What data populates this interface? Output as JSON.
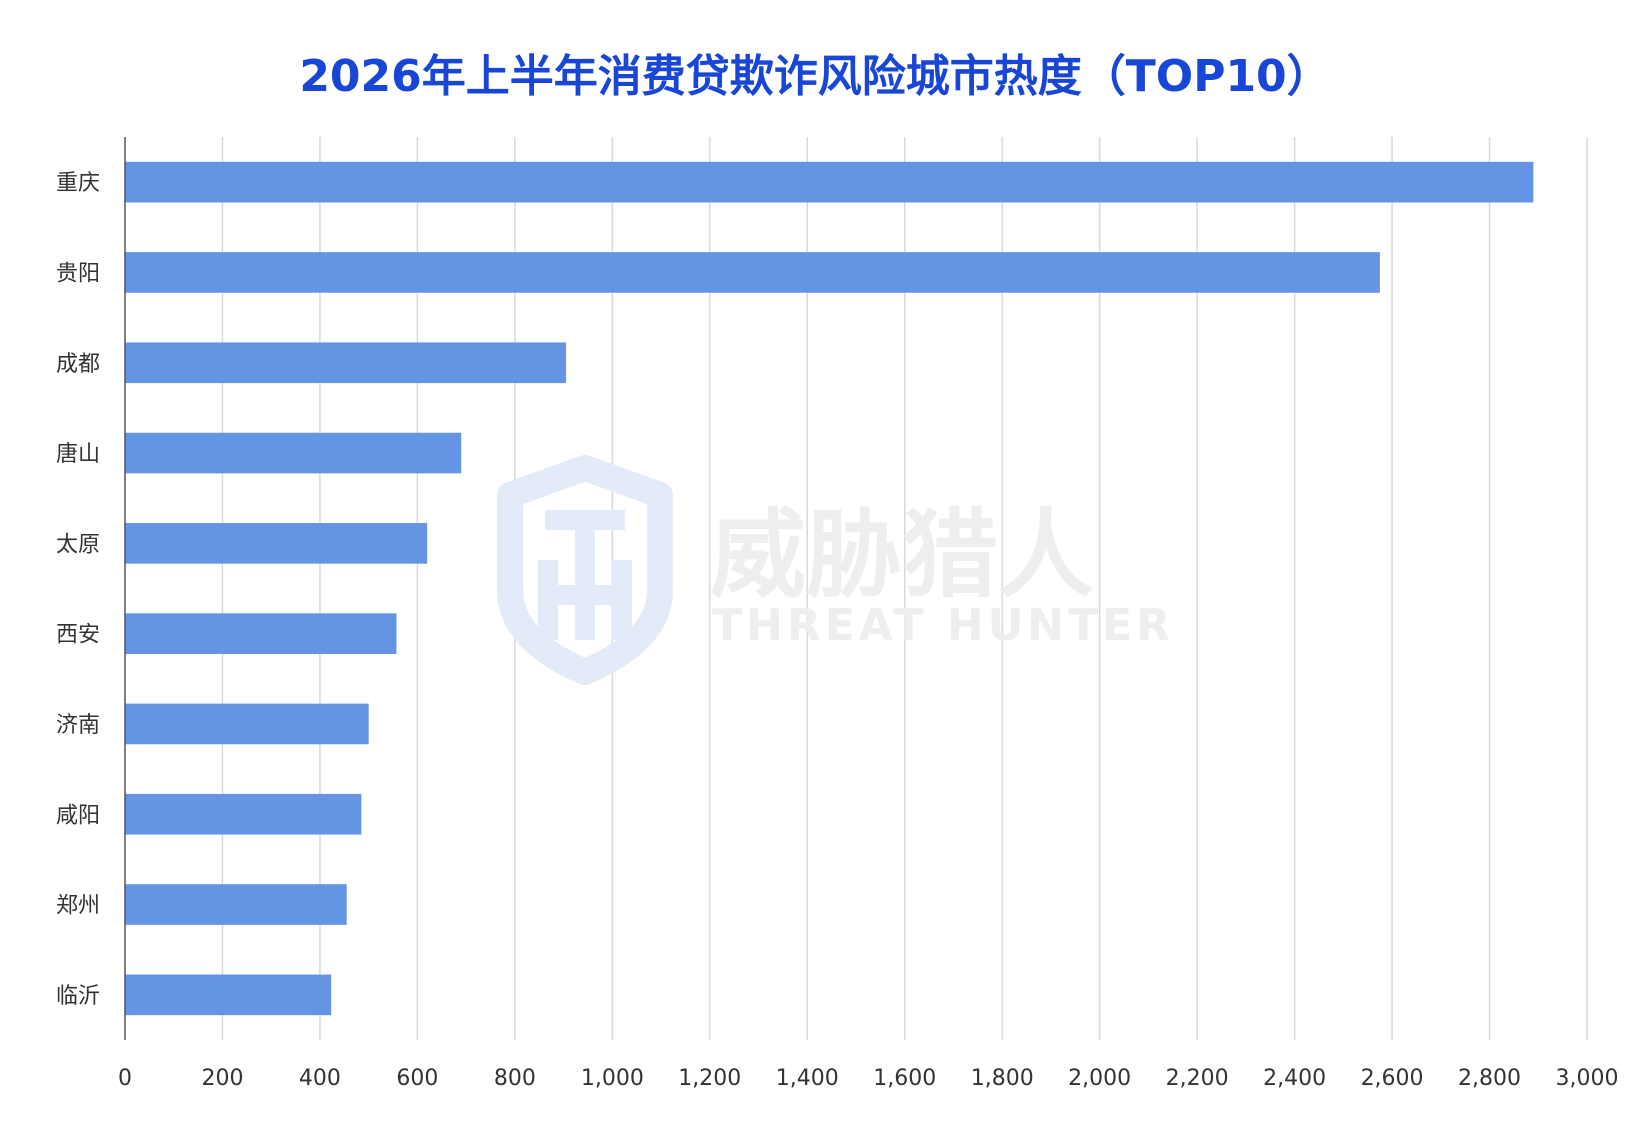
{
  "chart_data": {
    "type": "bar",
    "orientation": "horizontal",
    "title": "2026年上半年消费贷欺诈风险城市热度（TOP10）",
    "categories": [
      "重庆",
      "贵阳",
      "成都",
      "唐山",
      "太原",
      "西安",
      "济南",
      "咸阳",
      "郑州",
      "临沂"
    ],
    "values": [
      2890,
      2575,
      905,
      690,
      620,
      557,
      500,
      485,
      455,
      423
    ],
    "xlim": [
      0,
      3000
    ],
    "xticks": [
      "0",
      "200",
      "400",
      "600",
      "800",
      "1,000",
      "1,200",
      "1,400",
      "1,600",
      "1,800",
      "2,000",
      "2,200",
      "2,400",
      "2,600",
      "2,800",
      "3,000"
    ],
    "xlabel": "",
    "ylabel": "",
    "grid": "vertical",
    "legend": "none",
    "bar_color": "#6495e4",
    "title_color": "#1846d6"
  },
  "watermark": {
    "brand_cn": "威胁猎人",
    "brand_en": "THREAT HUNTER"
  }
}
